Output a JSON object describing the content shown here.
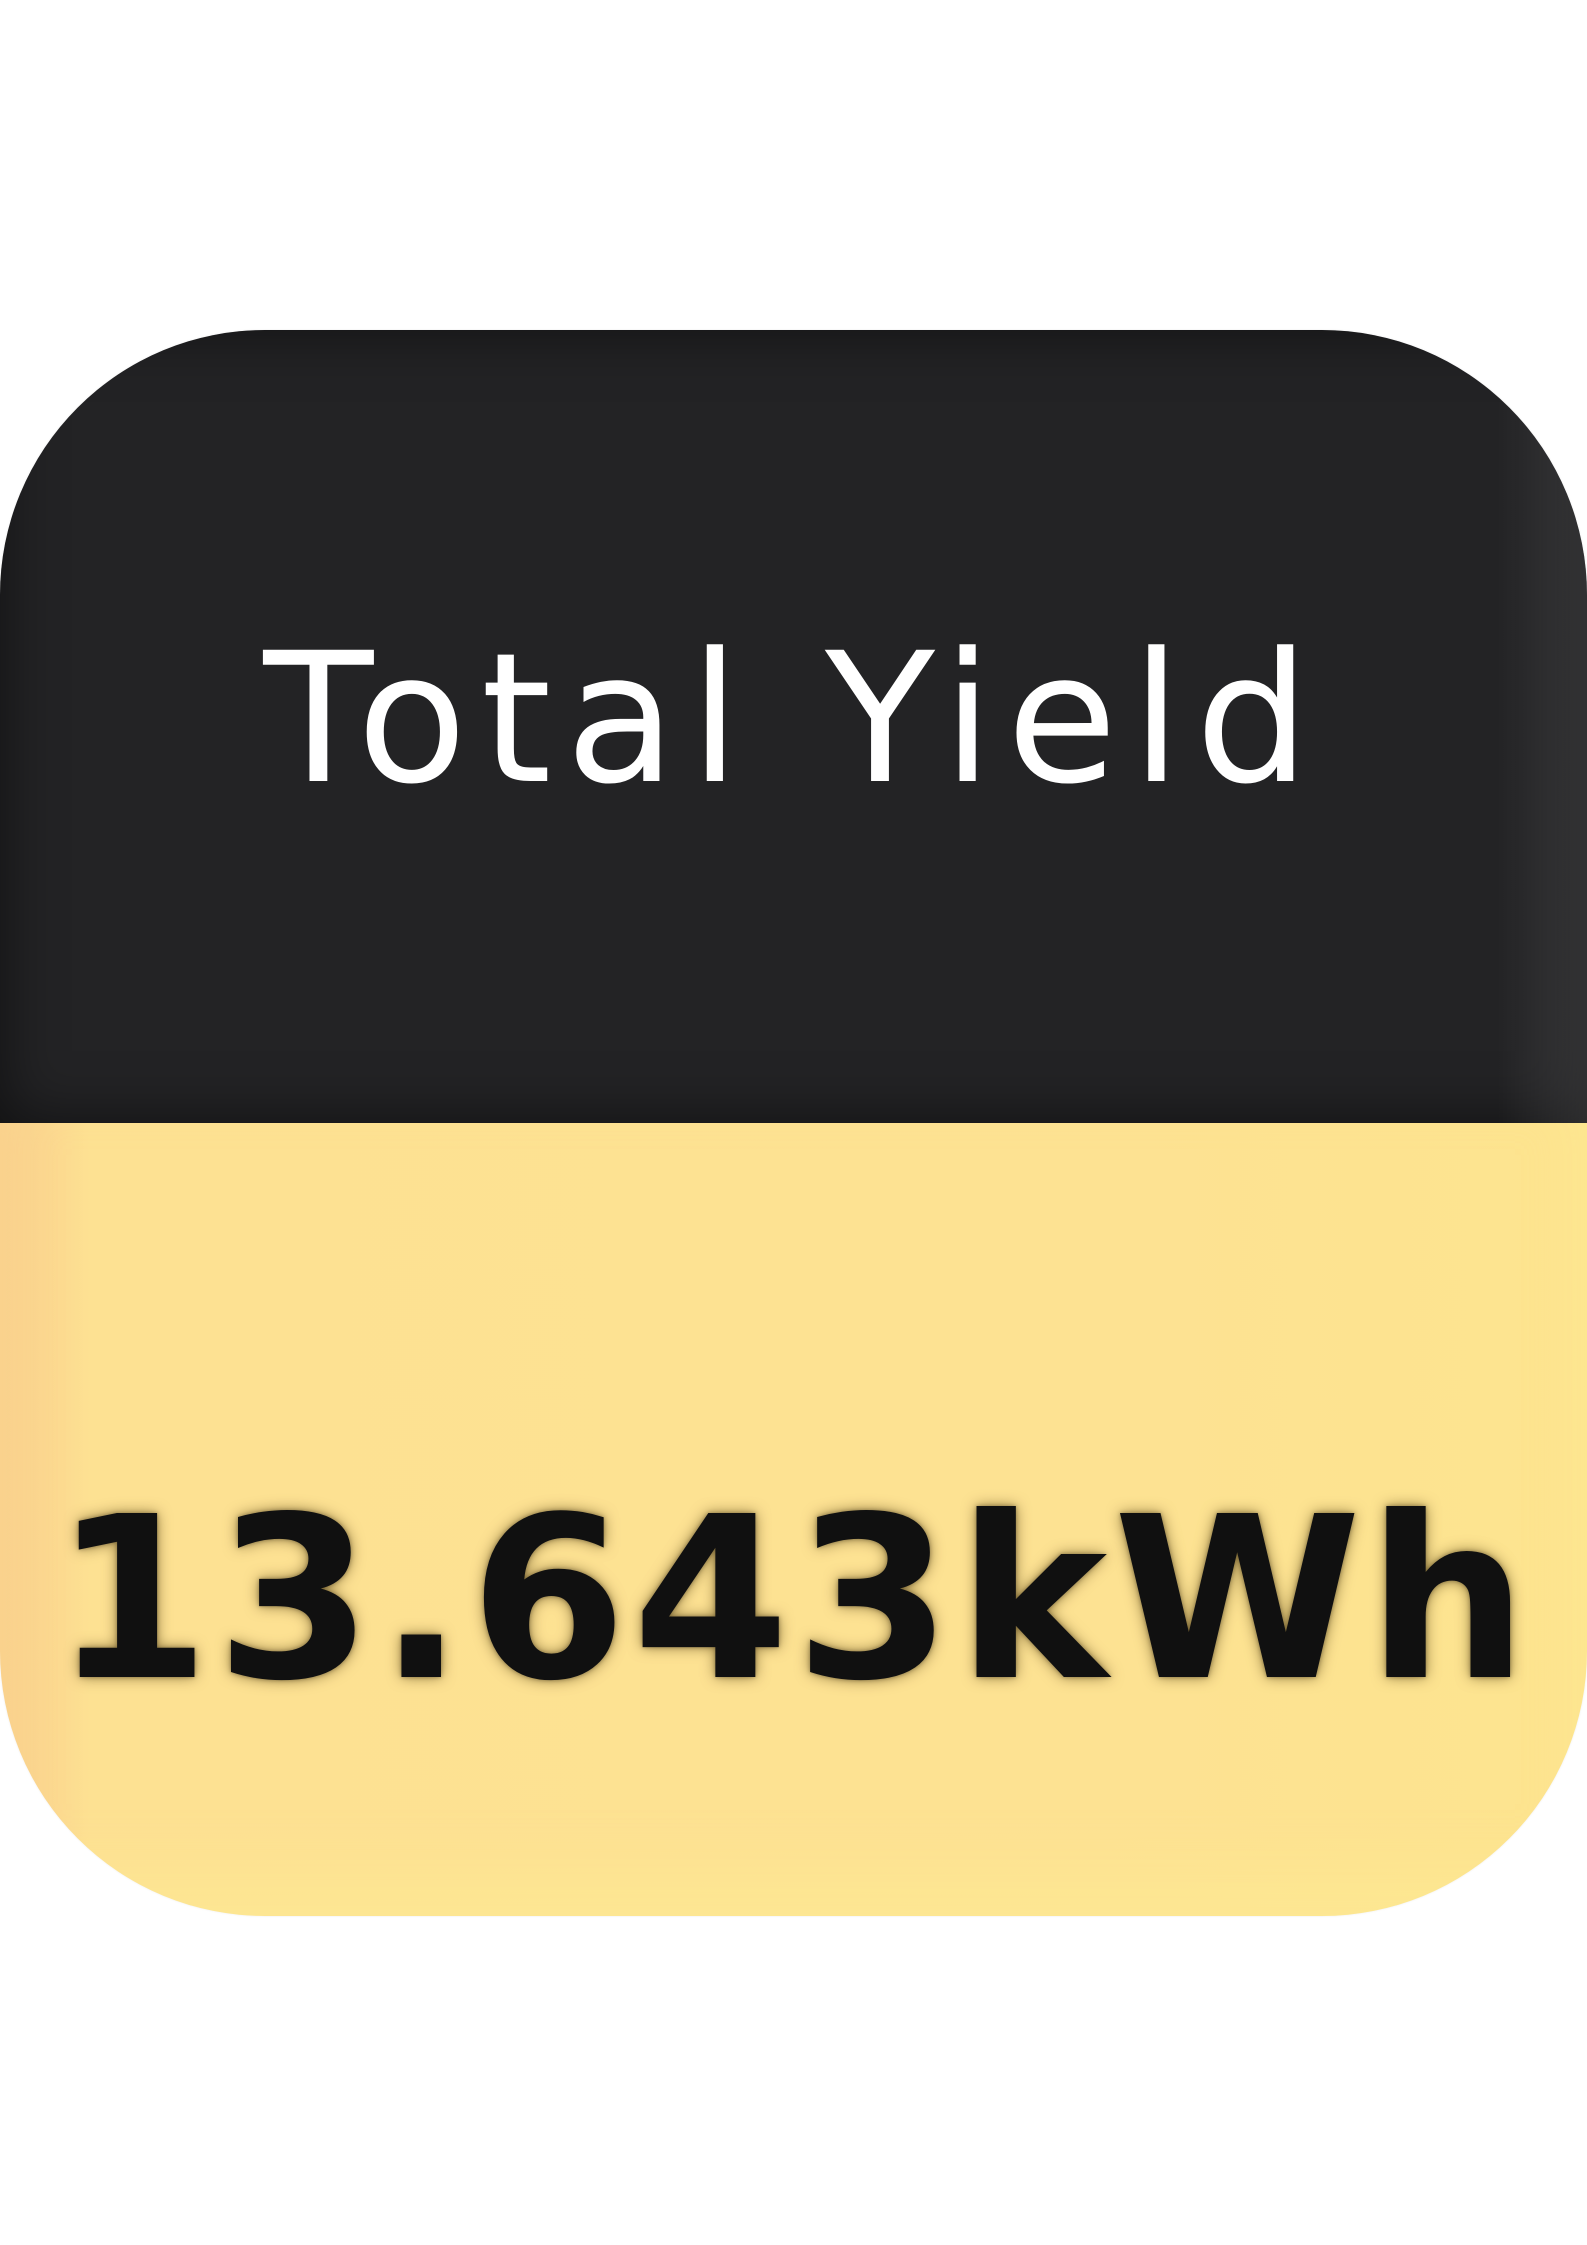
{
  "tile": {
    "label": "Total Yield",
    "value": "13.643kWh"
  },
  "colors": {
    "top_panel": "#232325",
    "bottom_panel": "#fde292",
    "label_text": "#ffffff",
    "value_text": "#101010"
  }
}
